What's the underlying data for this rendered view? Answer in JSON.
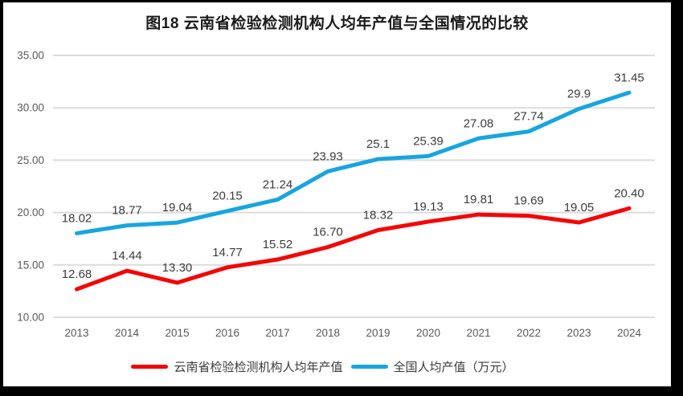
{
  "chart_data": {
    "type": "line",
    "title": "图18  云南省检验检测机构人均年产值与全国情况的比较",
    "categories": [
      "2013",
      "2014",
      "2015",
      "2016",
      "2017",
      "2018",
      "2019",
      "2020",
      "2021",
      "2022",
      "2023",
      "2024"
    ],
    "series": [
      {
        "name": "云南省检验检测机构人均年产值",
        "color": "#f40606",
        "values": [
          12.68,
          14.44,
          13.3,
          14.77,
          15.52,
          16.7,
          18.32,
          19.13,
          19.81,
          19.69,
          19.05,
          20.4
        ],
        "labels": [
          "12.68",
          "14.44",
          "13.30",
          "14.77",
          "15.52",
          "16.70",
          "18.32",
          "19.13",
          "19.81",
          "19.69",
          "19.05",
          "20.40"
        ]
      },
      {
        "name": "全国人均产值（万元）",
        "color": "#17a5e0",
        "values": [
          18.02,
          18.77,
          19.04,
          20.15,
          21.24,
          23.93,
          25.1,
          25.39,
          27.08,
          27.74,
          29.9,
          31.45
        ],
        "labels": [
          "18.02",
          "18.77",
          "19.04",
          "20.15",
          "21.24",
          "23.93",
          "25.1",
          "25.39",
          "27.08",
          "27.74",
          "29.9",
          "31.45"
        ]
      }
    ],
    "y_ticks": [
      {
        "value": 35,
        "label": "35.00"
      },
      {
        "value": 30,
        "label": "30.00"
      },
      {
        "value": 25,
        "label": "25.00"
      },
      {
        "value": 20,
        "label": "20.00"
      },
      {
        "value": 15,
        "label": "15.00"
      },
      {
        "value": 10,
        "label": "10.00"
      }
    ],
    "ylim": [
      10,
      35
    ],
    "xlabel": "",
    "ylabel": "",
    "grid": true,
    "legend_position": "bottom",
    "grid_color": "#dcdcdc",
    "axis_text_color": "#595959",
    "data_label_color": "#3b3b3b",
    "frame_color": "#000000",
    "background_color": "#ffffff"
  }
}
